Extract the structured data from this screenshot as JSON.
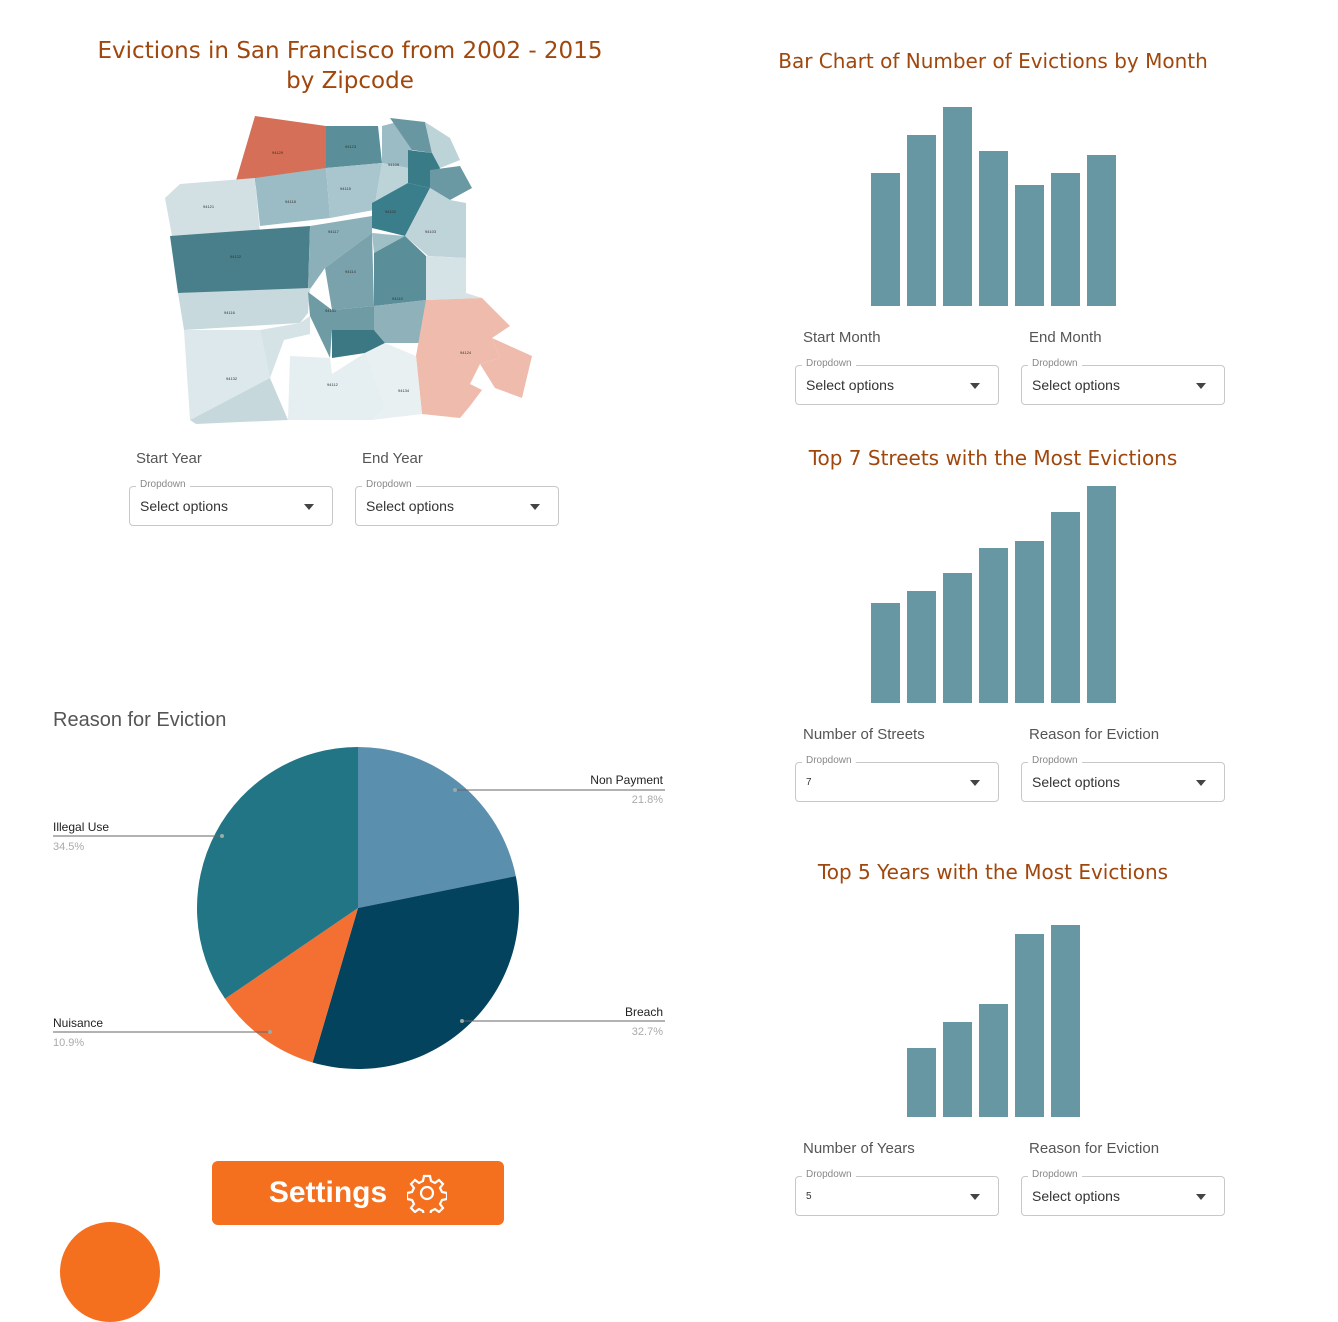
{
  "map": {
    "title_line1": "Evictions in San Francisco from 2002 - 2015",
    "title_line2": "by Zipcode",
    "start_label": "Start Year",
    "end_label": "End Year",
    "start_dropdown": {
      "legend": "Dropdown",
      "value": "Select options"
    },
    "end_dropdown": {
      "legend": "Dropdown",
      "value": "Select options"
    }
  },
  "month_panel": {
    "start_label": "Start Month",
    "end_label": "End Month",
    "start_dropdown": {
      "legend": "Dropdown",
      "value": "Select options"
    },
    "end_dropdown": {
      "legend": "Dropdown",
      "value": "Select options"
    }
  },
  "streets_panel": {
    "count_label": "Number of Streets",
    "reason_label": "Reason for Eviction",
    "count_dropdown": {
      "legend": "Dropdown",
      "value": "7"
    },
    "reason_dropdown": {
      "legend": "Dropdown",
      "value": "Select options"
    }
  },
  "years_panel": {
    "count_label": "Number of Years",
    "reason_label": "Reason for Eviction",
    "count_dropdown": {
      "legend": "Dropdown",
      "value": "5"
    },
    "reason_dropdown": {
      "legend": "Dropdown",
      "value": "Select options"
    }
  },
  "settings": {
    "label": "Settings"
  },
  "colors": {
    "bar": "#6797a3",
    "title": "#a0470d",
    "button": "#f46f1e"
  },
  "chart_data": [
    {
      "type": "bar",
      "id": "months",
      "title": "Bar Chart of Number of Evictions by Month",
      "values": [
        133,
        171,
        199,
        155,
        121,
        133,
        151
      ],
      "ylim": [
        0,
        200
      ],
      "grid": false
    },
    {
      "type": "bar",
      "id": "streets",
      "title": "Top 7 Streets with the Most Evictions",
      "values": [
        100,
        112,
        130,
        155,
        162,
        191,
        217
      ],
      "ylim": [
        0,
        217
      ],
      "grid": false
    },
    {
      "type": "bar",
      "id": "years",
      "title": "Top 5 Years with the Most Evictions",
      "values": [
        69,
        95,
        113,
        183,
        192
      ],
      "ylim": [
        0,
        192
      ],
      "grid": false
    },
    {
      "type": "pie",
      "id": "reasons",
      "title": "Reason for Eviction",
      "slices": [
        {
          "label": "Non Payment",
          "pct": "21.8%",
          "value": 21.8,
          "color": "#5a8fad"
        },
        {
          "label": "Breach",
          "pct": "32.7%",
          "value": 32.7,
          "color": "#04435d"
        },
        {
          "label": "Nuisance",
          "pct": "10.9%",
          "value": 10.9,
          "color": "#f46f32"
        },
        {
          "label": "Illegal Use",
          "pct": "34.5%",
          "value": 34.5,
          "color": "#217585"
        }
      ]
    }
  ]
}
